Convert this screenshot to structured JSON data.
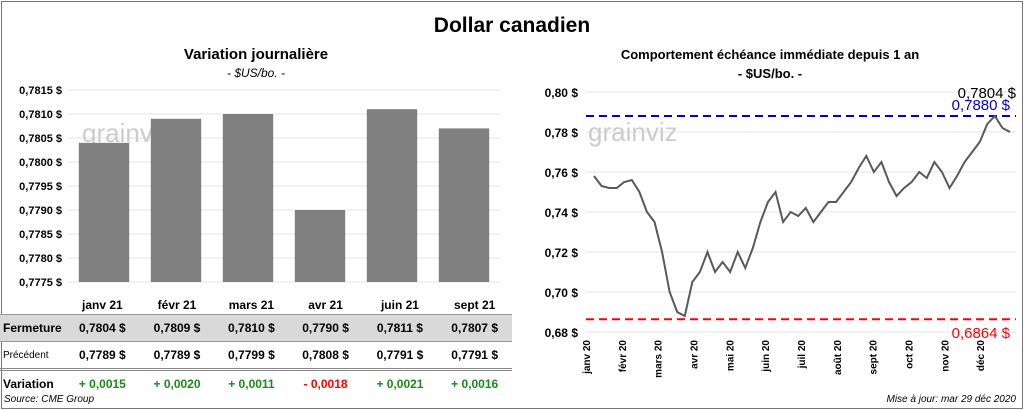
{
  "title": "Dollar canadien",
  "left": {
    "title": "Variation  journalière",
    "subtitle": "- $US/bo. -"
  },
  "right": {
    "title": "Comportement échéance immédiate depuis 1 an",
    "subtitle": "- $US/bo. -",
    "last_label": "0,7804 $",
    "high_label": "0,7880 $",
    "low_label": "0,6864 $"
  },
  "table": {
    "headers": [
      "janv 21",
      "févr 21",
      "mars 21",
      "avr 21",
      "juin 21",
      "sept 21"
    ],
    "rows": [
      {
        "label": "Fermeture",
        "values": [
          "0,7804  $",
          "0,7809  $",
          "0,7810  $",
          "0,7790  $",
          "0,7811  $",
          "0,7807  $"
        ]
      },
      {
        "label": "Précédent",
        "values": [
          "0,7789  $",
          "0,7789  $",
          "0,7799  $",
          "0,7808  $",
          "0,7791  $",
          "0,7791  $"
        ]
      },
      {
        "label": "Variation",
        "values": [
          "+ 0,0015",
          "+ 0,0020",
          "+ 0,0011",
          "- 0,0018",
          "+ 0,0021",
          "+ 0,0016"
        ]
      }
    ]
  },
  "source": "Source: CME Group",
  "updated": "Mise à jour: mar 29 déc 2020",
  "watermark": "grainviz",
  "colors": {
    "bar": "#808080",
    "line": "#595959",
    "high": "#0000cc",
    "low": "#ff0000",
    "pos": "#1a8a1a",
    "neg": "#ff0000"
  },
  "chart_data": [
    {
      "type": "bar",
      "title": "Variation  journalière",
      "categories": [
        "janv 21",
        "févr 21",
        "mars 21",
        "avr 21",
        "juin 21",
        "sept 21"
      ],
      "values": [
        0.7804,
        0.7809,
        0.781,
        0.779,
        0.7811,
        0.7807
      ],
      "ylim": [
        0.7775,
        0.7815
      ],
      "yticks": [
        "0,7775 $",
        "0,7780 $",
        "0,7785 $",
        "0,7790 $",
        "0,7795 $",
        "0,7800 $",
        "0,7805 $",
        "0,7810 $",
        "0,7815 $"
      ]
    },
    {
      "type": "line",
      "title": "Comportement échéance immédiate depuis 1 an",
      "ylim": [
        0.68,
        0.8
      ],
      "yticks": [
        "0,68 $",
        "0,70 $",
        "0,72 $",
        "0,74 $",
        "0,76 $",
        "0,78 $",
        "0,80 $"
      ],
      "xticks": [
        "janv 20",
        "févr 20",
        "mars 20",
        "avr 20",
        "mai 20",
        "juin 20",
        "juil 20",
        "août 20",
        "sept 20",
        "oct 20",
        "nov 20",
        "déc 20"
      ],
      "high": 0.788,
      "low": 0.6864,
      "values": [
        0.758,
        0.753,
        0.752,
        0.752,
        0.755,
        0.756,
        0.75,
        0.74,
        0.735,
        0.72,
        0.7,
        0.69,
        0.688,
        0.705,
        0.71,
        0.72,
        0.71,
        0.715,
        0.71,
        0.72,
        0.712,
        0.722,
        0.735,
        0.745,
        0.75,
        0.735,
        0.74,
        0.738,
        0.742,
        0.735,
        0.74,
        0.745,
        0.745,
        0.75,
        0.755,
        0.762,
        0.768,
        0.76,
        0.765,
        0.755,
        0.748,
        0.752,
        0.755,
        0.76,
        0.757,
        0.765,
        0.76,
        0.752,
        0.758,
        0.765,
        0.77,
        0.775,
        0.784,
        0.788,
        0.782,
        0.78
      ]
    }
  ]
}
